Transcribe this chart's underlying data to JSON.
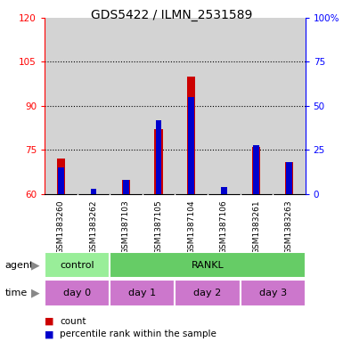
{
  "title": "GDS5422 / ILMN_2531589",
  "samples": [
    "GSM1383260",
    "GSM1383262",
    "GSM1387103",
    "GSM1387105",
    "GSM1387104",
    "GSM1387106",
    "GSM1383261",
    "GSM1383263"
  ],
  "counts": [
    72,
    60,
    65,
    82,
    100,
    60,
    76,
    71
  ],
  "percentile_ranks": [
    15,
    3,
    8,
    42,
    55,
    4,
    28,
    18
  ],
  "ylim_left": [
    60,
    120
  ],
  "ylim_right": [
    0,
    100
  ],
  "yticks_left": [
    60,
    75,
    90,
    105,
    120
  ],
  "yticks_right": [
    0,
    25,
    50,
    75,
    100
  ],
  "ytick_labels_right": [
    "0",
    "25",
    "50",
    "75",
    "100%"
  ],
  "bar_color_red": "#CC0000",
  "bar_color_blue": "#0000CC",
  "bg_color": "#D3D3D3",
  "agent_color_control": "#99EE99",
  "agent_color_rankl": "#66CC66",
  "time_color": "#CC77CC",
  "legend_red_label": "count",
  "legend_blue_label": "percentile rank within the sample",
  "red_bar_width": 0.25,
  "blue_bar_width": 0.18,
  "gridline_ticks": [
    75,
    90,
    105
  ]
}
